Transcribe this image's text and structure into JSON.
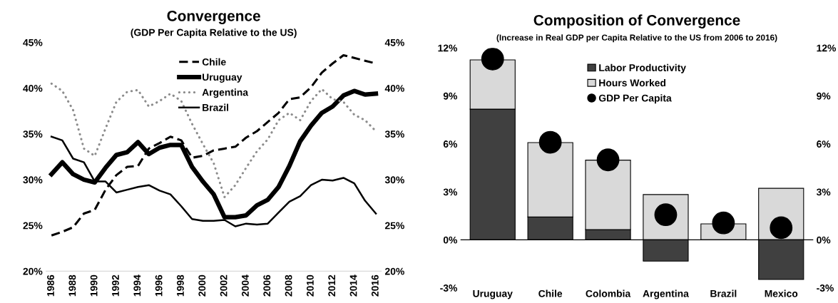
{
  "chart_data": [
    {
      "type": "line",
      "title": "Convergence",
      "subtitle": "(GDP Per Capita Relative to the US)",
      "x": [
        1986,
        1987,
        1988,
        1989,
        1990,
        1991,
        1992,
        1993,
        1994,
        1995,
        1996,
        1997,
        1998,
        1999,
        2000,
        2001,
        2002,
        2003,
        2004,
        2005,
        2006,
        2007,
        2008,
        2009,
        2010,
        2011,
        2012,
        2013,
        2014,
        2015,
        2016
      ],
      "series": [
        {
          "name": "Chile",
          "color": "#000000",
          "line_style": "dashed",
          "values": [
            23.9,
            24.3,
            24.8,
            26.3,
            26.7,
            28.9,
            30.5,
            31.4,
            31.5,
            33.4,
            34.0,
            34.7,
            34.3,
            32.4,
            32.6,
            33.2,
            33.4,
            33.6,
            34.6,
            35.3,
            36.3,
            37.3,
            38.8,
            39.0,
            40.1,
            41.7,
            42.7,
            43.6,
            43.3,
            43.0,
            42.7
          ]
        },
        {
          "name": "Uruguay",
          "color": "#000000",
          "line_style": "solid",
          "values": [
            30.6,
            31.9,
            30.6,
            30.0,
            29.7,
            31.3,
            32.7,
            33.0,
            34.1,
            32.8,
            33.5,
            33.8,
            33.8,
            31.4,
            29.8,
            28.4,
            25.9,
            25.9,
            26.1,
            27.2,
            27.8,
            29.2,
            31.5,
            34.2,
            35.9,
            37.3,
            38.0,
            39.2,
            39.7,
            39.3,
            39.4
          ]
        },
        {
          "name": "Argentina",
          "color": "#8c8c8c",
          "line_style": "dotted",
          "values": [
            40.5,
            39.7,
            37.6,
            33.4,
            32.6,
            35.6,
            38.5,
            39.6,
            39.8,
            38.0,
            38.6,
            39.4,
            38.6,
            36.1,
            33.9,
            31.8,
            28.1,
            29.4,
            31.3,
            33.1,
            34.4,
            36.5,
            37.3,
            36.5,
            38.6,
            39.9,
            38.8,
            38.5,
            37.1,
            36.5,
            35.3
          ]
        },
        {
          "name": "Brazil",
          "color": "#000000",
          "values": [
            34.7,
            34.3,
            32.3,
            31.9,
            29.8,
            29.8,
            28.6,
            28.9,
            29.2,
            29.4,
            28.8,
            28.4,
            27.1,
            25.7,
            25.5,
            25.5,
            25.6,
            24.9,
            25.2,
            25.1,
            25.2,
            26.4,
            27.6,
            28.2,
            29.4,
            30.0,
            29.9,
            30.2,
            29.6,
            27.7,
            26.3
          ]
        }
      ],
      "xlim": [
        1985.5,
        2016.5
      ],
      "xticks": [
        1986,
        1988,
        1990,
        1992,
        1994,
        1996,
        1998,
        2000,
        2002,
        2004,
        2006,
        2008,
        2010,
        2012,
        2014,
        2016
      ],
      "ylim": [
        20,
        45
      ],
      "yticks": [
        {
          "value": 20,
          "label": "20%"
        },
        {
          "value": 25,
          "label": "25%"
        },
        {
          "value": 30,
          "label": "30%"
        },
        {
          "value": 35,
          "label": "35%"
        },
        {
          "value": 40,
          "label": "40%"
        },
        {
          "value": 45,
          "label": "45%"
        }
      ],
      "y2lim": [
        20,
        45
      ],
      "y2ticks": [
        {
          "value": 20,
          "label": "20%"
        },
        {
          "value": 25,
          "label": "25%"
        },
        {
          "value": 30,
          "label": "30%"
        },
        {
          "value": 35,
          "label": "35%"
        },
        {
          "value": 40,
          "label": "40%"
        },
        {
          "value": 45,
          "label": "45%"
        }
      ],
      "legend": "top",
      "grid": false
    },
    {
      "type": "bar",
      "stacked": true,
      "title": "Composition of Convergence",
      "subtitle": "(Increase in Real GDP per Capita Relative to the US from 2006 to 2016)",
      "categories": [
        "Uruguay",
        "Chile",
        "Colombia",
        "Argentina",
        "Brazil",
        "Mexico"
      ],
      "series": [
        {
          "name": "Labor Productivity",
          "color": "#404040",
          "values": [
            8.17,
            1.43,
            0.64,
            -1.33,
            null,
            -2.47
          ]
        },
        {
          "name": "Hours Worked",
          "color": "#d9d9d9",
          "values": [
            3.08,
            4.65,
            4.34,
            2.83,
            1.0,
            3.22
          ]
        },
        {
          "name": "GDP Per Capita",
          "type": "scatter",
          "color": "#000000",
          "x": [
            "Uruguay",
            "Chile",
            "Colombia",
            "Argentina",
            "Brazil",
            "Mexico"
          ],
          "values": [
            11.3,
            6.1,
            5.0,
            1.57,
            1.06,
            0.76
          ]
        }
      ],
      "ylim": [
        -3,
        12
      ],
      "yticks": [
        {
          "value": -3,
          "label": "-3%"
        },
        {
          "value": 0,
          "label": "0%"
        },
        {
          "value": 3,
          "label": "3%"
        },
        {
          "value": 6,
          "label": "6%"
        },
        {
          "value": 9,
          "label": "9%"
        },
        {
          "value": 12,
          "label": "12%"
        }
      ],
      "y2lim": [
        -3,
        12
      ],
      "y2ticks": [
        {
          "value": -3,
          "label": "-3%"
        },
        {
          "value": 0,
          "label": "0%"
        },
        {
          "value": 3,
          "label": "3%"
        },
        {
          "value": 6,
          "label": "6%"
        },
        {
          "value": 9,
          "label": "9%"
        },
        {
          "value": 12,
          "label": "12%"
        }
      ],
      "legend": "top"
    }
  ]
}
